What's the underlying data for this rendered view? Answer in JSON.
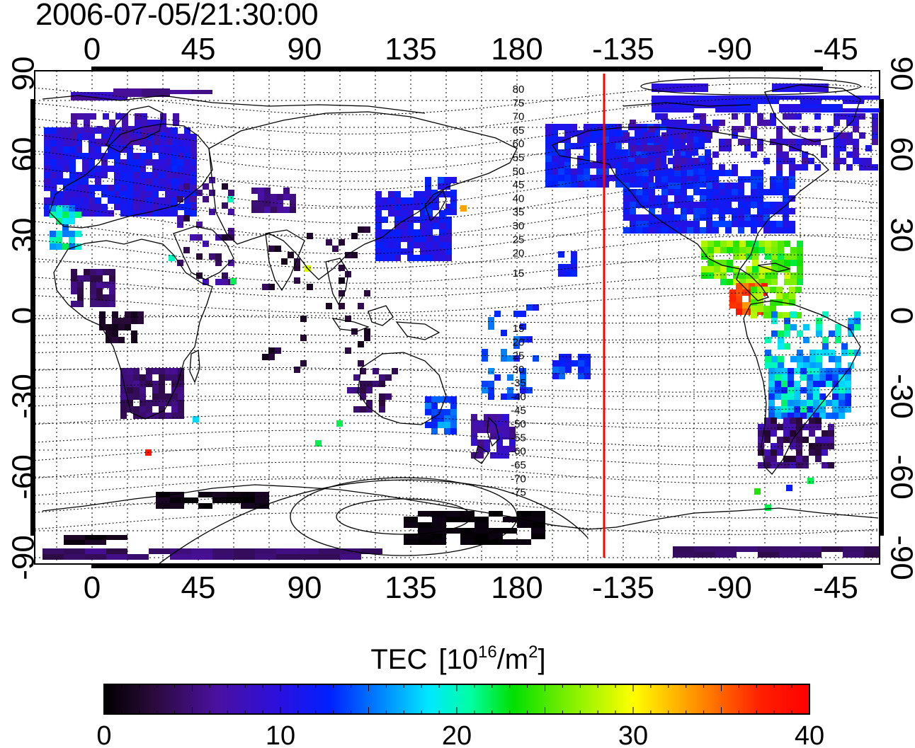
{
  "timestamp": "2006-07-05/21:30:00",
  "lon_ticks": [
    "0",
    "45",
    "90",
    "135",
    "180",
    "-135",
    "-90",
    "-45"
  ],
  "lat_ticks": [
    "90",
    "60",
    "30",
    "0",
    "-30",
    "-60",
    "-90"
  ],
  "contour_labels_north": [
    "80",
    "75",
    "70",
    "65",
    "60",
    "55",
    "50",
    "45",
    "40",
    "35",
    "30",
    "25",
    "20",
    "15"
  ],
  "contour_labels_south": [
    "15",
    "20",
    "25",
    "30",
    "-35",
    "-40",
    "-45",
    "-50",
    "-55",
    "-60",
    "-65",
    "-70",
    "-75"
  ],
  "colorbar": {
    "title": "TEC",
    "unit_prefix": "[10",
    "unit_exp1": "16",
    "unit_mid": "/m",
    "unit_exp2": "2",
    "unit_suffix": "]",
    "ticks": [
      "0",
      "10",
      "20",
      "30",
      "40"
    ],
    "min": 0,
    "max": 40
  },
  "colors": {
    "terminator": "#ff0000",
    "map_frame": "#000000"
  }
}
